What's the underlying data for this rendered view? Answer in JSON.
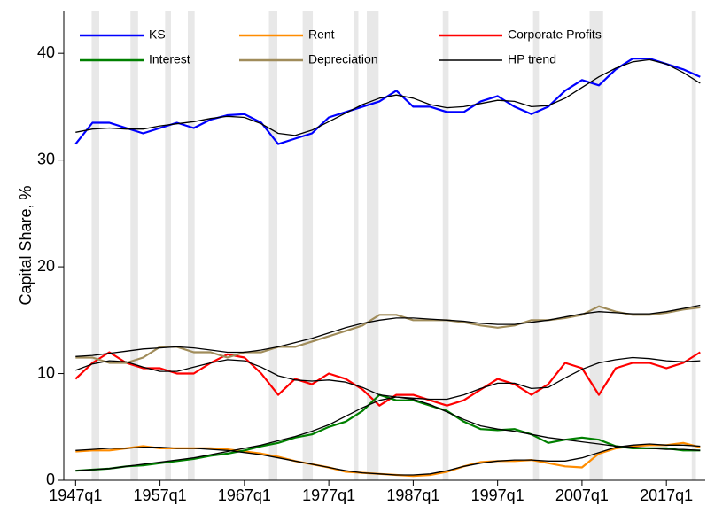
{
  "chart_data": {
    "type": "line",
    "ylabel": "Capital Share, %",
    "ylim": [
      0,
      44
    ],
    "yticks": [
      0,
      10,
      20,
      30,
      40
    ],
    "xlim": [
      1945.6,
      2021.6
    ],
    "xticks": [
      {
        "value": 1947,
        "label": "1947q1"
      },
      {
        "value": 1957,
        "label": "1957q1"
      },
      {
        "value": 1967,
        "label": "1967q1"
      },
      {
        "value": 1977,
        "label": "1977q1"
      },
      {
        "value": 1987,
        "label": "1987q1"
      },
      {
        "value": 1997,
        "label": "1997q1"
      },
      {
        "value": 2007,
        "label": "2007q1"
      },
      {
        "value": 2017,
        "label": "2017q1"
      }
    ],
    "shaded_periods": [
      [
        1948.9,
        1949.8
      ],
      [
        1953.5,
        1954.4
      ],
      [
        1957.6,
        1958.3
      ],
      [
        1960.3,
        1961.1
      ],
      [
        1969.9,
        1970.9
      ],
      [
        1973.9,
        1975.1
      ],
      [
        1980.0,
        1980.5
      ],
      [
        1981.5,
        1982.9
      ],
      [
        1990.5,
        1991.2
      ],
      [
        2001.2,
        2001.9
      ],
      [
        2007.9,
        2009.5
      ],
      [
        2020.0,
        2020.5
      ]
    ],
    "shade_color": "#e8e8e8",
    "x": [
      1947,
      1949,
      1951,
      1953,
      1955,
      1957,
      1959,
      1961,
      1963,
      1965,
      1967,
      1969,
      1971,
      1973,
      1975,
      1977,
      1979,
      1981,
      1983,
      1985,
      1987,
      1989,
      1991,
      1993,
      1995,
      1997,
      1999,
      2001,
      2003,
      2005,
      2007,
      2009,
      2011,
      2013,
      2015,
      2017,
      2019,
      2021
    ],
    "trend_name": "HP trend",
    "trend_color": "#000000",
    "series": [
      {
        "name": "KS",
        "color": "#0000ff",
        "values": [
          31.5,
          33.5,
          33.5,
          33,
          32.5,
          33,
          33.5,
          33,
          33.8,
          34.2,
          34.3,
          33.5,
          31.5,
          32,
          32.5,
          34,
          34.5,
          35,
          35.5,
          36.5,
          35,
          35,
          34.5,
          34.5,
          35.5,
          36,
          35,
          34.3,
          35,
          36.5,
          37.5,
          37,
          38.5,
          39.5,
          39.5,
          39,
          38.5,
          37.8
        ],
        "trend": [
          32.6,
          32.9,
          33.0,
          32.9,
          32.9,
          33.2,
          33.4,
          33.6,
          33.9,
          34.1,
          34.0,
          33.4,
          32.5,
          32.3,
          32.8,
          33.6,
          34.4,
          35.2,
          35.8,
          36.1,
          35.8,
          35.2,
          34.9,
          35.0,
          35.3,
          35.6,
          35.5,
          35.0,
          35.1,
          35.8,
          36.8,
          37.8,
          38.6,
          39.2,
          39.4,
          39.0,
          38.2,
          37.2
        ]
      },
      {
        "name": "Rent",
        "color": "#ff8c00",
        "values": [
          2.7,
          2.8,
          2.8,
          3.0,
          3.2,
          3.0,
          3.0,
          3.0,
          3.0,
          2.9,
          2.7,
          2.5,
          2.2,
          1.8,
          1.5,
          1.2,
          0.8,
          0.7,
          0.6,
          0.5,
          0.4,
          0.5,
          0.8,
          1.3,
          1.7,
          1.8,
          1.8,
          1.9,
          1.6,
          1.3,
          1.2,
          2.5,
          3.0,
          3.2,
          3.3,
          3.3,
          3.5,
          3.1
        ],
        "trend": [
          2.8,
          2.9,
          3.0,
          3.0,
          3.1,
          3.1,
          3.0,
          3.0,
          2.9,
          2.8,
          2.6,
          2.4,
          2.1,
          1.8,
          1.5,
          1.2,
          0.9,
          0.7,
          0.6,
          0.5,
          0.5,
          0.6,
          0.9,
          1.3,
          1.6,
          1.8,
          1.9,
          1.9,
          1.8,
          1.8,
          2.1,
          2.6,
          3.1,
          3.3,
          3.4,
          3.3,
          3.3,
          3.2
        ]
      },
      {
        "name": "Corporate Profits",
        "color": "#ff0000",
        "values": [
          9.5,
          11,
          12,
          11,
          10.5,
          10.5,
          10,
          10,
          11,
          11.8,
          11.5,
          10,
          8,
          9.5,
          9,
          10,
          9.5,
          8.5,
          7,
          8,
          8,
          7.5,
          7,
          7.5,
          8.5,
          9.5,
          9,
          8,
          9,
          11,
          10.5,
          8,
          10.5,
          11,
          11,
          10.5,
          11,
          12
        ],
        "trend": [
          10.3,
          10.9,
          11.2,
          11.1,
          10.6,
          10.2,
          10.2,
          10.6,
          11.0,
          11.3,
          11.2,
          10.6,
          9.8,
          9.4,
          9.3,
          9.4,
          9.2,
          8.7,
          8.0,
          7.8,
          7.7,
          7.6,
          7.6,
          8.0,
          8.6,
          9.1,
          9.1,
          8.6,
          8.7,
          9.6,
          10.4,
          11.0,
          11.3,
          11.5,
          11.4,
          11.2,
          11.1,
          11.2
        ]
      },
      {
        "name": "Interest",
        "color": "#008000",
        "values": [
          0.9,
          1.0,
          1.1,
          1.3,
          1.4,
          1.6,
          1.8,
          2.0,
          2.3,
          2.5,
          2.8,
          3.2,
          3.5,
          4.0,
          4.3,
          5.0,
          5.5,
          6.5,
          8.0,
          7.5,
          7.5,
          7.0,
          6.5,
          5.5,
          4.8,
          4.7,
          4.8,
          4.3,
          3.5,
          3.8,
          4.0,
          3.8,
          3.2,
          3.0,
          3.0,
          3.0,
          2.8,
          2.8
        ],
        "trend": [
          0.9,
          1.0,
          1.1,
          1.3,
          1.5,
          1.7,
          1.9,
          2.1,
          2.4,
          2.7,
          3.0,
          3.3,
          3.7,
          4.1,
          4.6,
          5.2,
          6.0,
          6.8,
          7.5,
          7.8,
          7.6,
          7.1,
          6.4,
          5.7,
          5.1,
          4.8,
          4.6,
          4.3,
          4.0,
          3.8,
          3.6,
          3.4,
          3.2,
          3.1,
          3.0,
          2.9,
          2.9,
          2.8
        ]
      },
      {
        "name": "Depreciation",
        "color": "#a08c5a",
        "values": [
          11.5,
          11.5,
          11.0,
          11.0,
          11.5,
          12.5,
          12.5,
          12.0,
          12.0,
          11.5,
          12.0,
          12.0,
          12.5,
          12.5,
          13.0,
          13.5,
          14.0,
          14.5,
          15.5,
          15.5,
          15.0,
          15.0,
          15.0,
          14.8,
          14.5,
          14.3,
          14.5,
          15.0,
          15.0,
          15.2,
          15.5,
          16.3,
          15.8,
          15.5,
          15.5,
          15.7,
          16.0,
          16.2
        ],
        "trend": [
          11.6,
          11.7,
          11.9,
          12.1,
          12.3,
          12.4,
          12.5,
          12.4,
          12.2,
          12.0,
          12.0,
          12.2,
          12.5,
          12.9,
          13.3,
          13.8,
          14.3,
          14.7,
          15.0,
          15.2,
          15.2,
          15.1,
          15.0,
          14.9,
          14.7,
          14.6,
          14.6,
          14.8,
          15.0,
          15.3,
          15.6,
          15.8,
          15.7,
          15.6,
          15.6,
          15.8,
          16.1,
          16.4
        ]
      }
    ]
  }
}
